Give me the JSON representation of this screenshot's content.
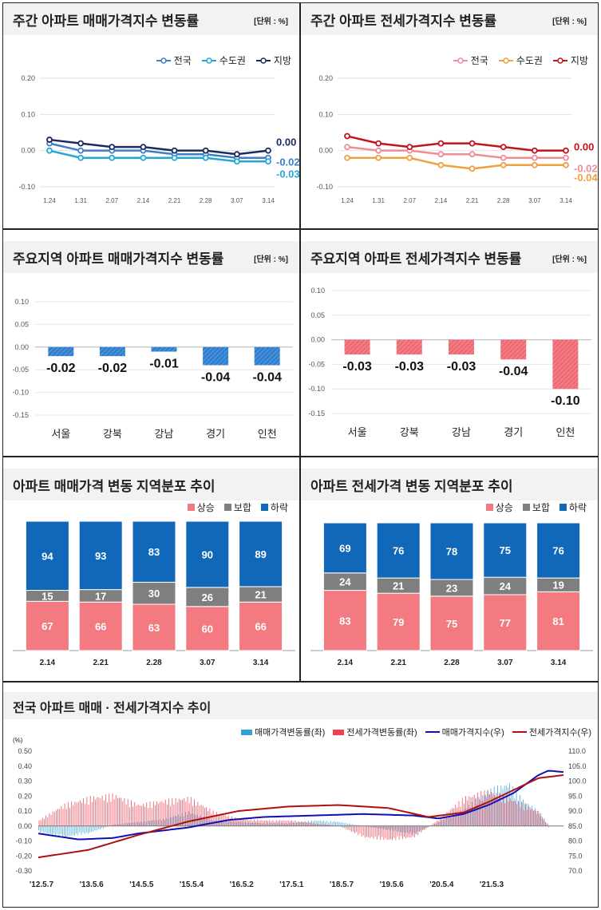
{
  "panel1": {
    "title": "주간 아파트 매매가격지수 변동률",
    "unit": "[단위 : %]",
    "chart_data": {
      "type": "line",
      "x": [
        "1.24",
        "1.31",
        "2.07",
        "2.14",
        "2.21",
        "2.28",
        "3.07",
        "3.14"
      ],
      "yticks": [
        "0.20",
        "0.10",
        "0.00",
        "-0.10"
      ],
      "ylim": [
        -0.1,
        0.2
      ],
      "series": [
        {
          "name": "전국",
          "color": "#3f7fc6",
          "values": [
            0.02,
            0.0,
            0.0,
            0.0,
            -0.01,
            -0.01,
            -0.02,
            -0.02
          ],
          "end_label": "-0.02"
        },
        {
          "name": "수도권",
          "color": "#22a8d8",
          "values": [
            0.0,
            -0.02,
            -0.02,
            -0.02,
            -0.02,
            -0.02,
            -0.03,
            -0.03
          ],
          "end_label": "-0.03"
        },
        {
          "name": "지방",
          "color": "#1c2b5e",
          "values": [
            0.03,
            0.02,
            0.01,
            0.01,
            0.0,
            0.0,
            -0.01,
            0.0
          ],
          "end_label": "0.00"
        }
      ]
    }
  },
  "panel2": {
    "title": "주간 아파트 전세가격지수 변동률",
    "unit": "[단위 : %]",
    "chart_data": {
      "type": "line",
      "x": [
        "1.24",
        "1.31",
        "2.07",
        "2.14",
        "2.21",
        "2.28",
        "3.07",
        "3.14"
      ],
      "yticks": [
        "0.20",
        "0.10",
        "0.00",
        "-0.10"
      ],
      "ylim": [
        -0.1,
        0.2
      ],
      "series": [
        {
          "name": "전국",
          "color": "#f08c98",
          "values": [
            0.01,
            0.0,
            0.0,
            -0.01,
            -0.01,
            -0.02,
            -0.02,
            -0.02
          ],
          "end_label": "-0.02"
        },
        {
          "name": "수도권",
          "color": "#f0a040",
          "values": [
            -0.02,
            -0.02,
            -0.02,
            -0.04,
            -0.05,
            -0.04,
            -0.04,
            -0.04
          ],
          "end_label": "-0.04"
        },
        {
          "name": "지방",
          "color": "#c0141c",
          "values": [
            0.04,
            0.02,
            0.01,
            0.02,
            0.02,
            0.01,
            0.0,
            0.0
          ],
          "end_label": "0.00"
        }
      ]
    }
  },
  "panel3": {
    "title": "주요지역 아파트 매매가격지수 변동률",
    "unit": "[단위 : %]",
    "chart_data": {
      "type": "bar",
      "categories": [
        "서울",
        "강북",
        "강남",
        "경기",
        "인천"
      ],
      "values": [
        -0.02,
        -0.02,
        -0.01,
        -0.04,
        -0.04
      ],
      "labels": [
        "-0.02",
        "-0.02",
        "-0.01",
        "-0.04",
        "-0.04"
      ],
      "yticks": [
        "0.10",
        "0.05",
        "0.00",
        "-0.05",
        "-0.10",
        "-0.15"
      ],
      "ylim": [
        -0.15,
        0.1
      ],
      "color": "#2f7fd0"
    }
  },
  "panel4": {
    "title": "주요지역 아파트 전세가격지수 변동률",
    "unit": "[단위 : %]",
    "chart_data": {
      "type": "bar",
      "categories": [
        "서울",
        "강북",
        "강남",
        "경기",
        "인천"
      ],
      "values": [
        -0.03,
        -0.03,
        -0.03,
        -0.04,
        -0.1
      ],
      "labels": [
        "-0.03",
        "-0.03",
        "-0.03",
        "-0.04",
        "-0.10"
      ],
      "yticks": [
        "0.10",
        "0.05",
        "0.00",
        "-0.05",
        "-0.10",
        "-0.15"
      ],
      "ylim": [
        -0.15,
        0.1
      ],
      "color": "#f06a74"
    }
  },
  "panel5": {
    "title": "아파트 매매가격 변동 지역분포 추이",
    "chart_data": {
      "type": "bar",
      "stacked": true,
      "categories": [
        "2.14",
        "2.21",
        "2.28",
        "3.07",
        "3.14"
      ],
      "series": [
        {
          "name": "상승",
          "color": "#f27a80",
          "values": [
            67,
            66,
            63,
            60,
            66
          ]
        },
        {
          "name": "보합",
          "color": "#7f7f7f",
          "values": [
            15,
            17,
            30,
            26,
            21
          ]
        },
        {
          "name": "하락",
          "color": "#1268b8",
          "values": [
            94,
            93,
            83,
            90,
            89
          ]
        }
      ]
    }
  },
  "panel6": {
    "title": "아파트 전세가격 변동 지역분포 추이",
    "chart_data": {
      "type": "bar",
      "stacked": true,
      "categories": [
        "2.14",
        "2.21",
        "2.28",
        "3.07",
        "3.14"
      ],
      "series": [
        {
          "name": "상승",
          "color": "#f27a80",
          "values": [
            83,
            79,
            75,
            77,
            81
          ]
        },
        {
          "name": "보합",
          "color": "#7f7f7f",
          "values": [
            24,
            21,
            23,
            24,
            19
          ]
        },
        {
          "name": "하락",
          "color": "#1268b8",
          "values": [
            69,
            76,
            78,
            75,
            76
          ]
        }
      ]
    }
  },
  "panel7": {
    "title": "전국 아파트 매매 · 전세가격지수 추이",
    "unit_left": "(%)",
    "chart_data": {
      "type": "bar+line",
      "x_ticks": [
        "'12.5.7",
        "'13.5.6",
        "'14.5.5",
        "'15.5.4",
        "'16.5.2",
        "'17.5.1",
        "'18.5.7",
        "'19.5.6",
        "'20.5.4",
        "'21.5.3"
      ],
      "y_left_ticks": [
        "0.50",
        "0.40",
        "0.30",
        "0.20",
        "0.10",
        "0.00",
        "-0.10",
        "-0.20",
        "-0.30"
      ],
      "y_left_lim": [
        -0.3,
        0.5
      ],
      "y_right_ticks": [
        "110.0",
        "105.0",
        "100.0",
        "95.0",
        "90.0",
        "85.0",
        "80.0",
        "75.0",
        "70.0"
      ],
      "y_right_lim": [
        70,
        110
      ],
      "series": [
        {
          "name": "매매가격변동률(좌)",
          "kind": "bar",
          "color": "#33a0d8",
          "keypoints": [
            [
              0,
              -0.04
            ],
            [
              0.5,
              -0.08
            ],
            [
              1,
              -0.05
            ],
            [
              1.5,
              0.01
            ],
            [
              2,
              0.03
            ],
            [
              2.5,
              0.05
            ],
            [
              3,
              0.1
            ],
            [
              3.5,
              0.04
            ],
            [
              4,
              0.03
            ],
            [
              4.5,
              0.02
            ],
            [
              5,
              0.02
            ],
            [
              5.5,
              0.04
            ],
            [
              6,
              0.03
            ],
            [
              6.5,
              0.0
            ],
            [
              7,
              -0.03
            ],
            [
              7.5,
              -0.06
            ],
            [
              8,
              0.03
            ],
            [
              8.5,
              0.12
            ],
            [
              9,
              0.25
            ],
            [
              9.4,
              0.3
            ],
            [
              9.7,
              0.18
            ],
            [
              10,
              0.1
            ],
            [
              10.2,
              -0.01
            ]
          ]
        },
        {
          "name": "전세가격변동률(좌)",
          "kind": "bar",
          "color": "#f04050",
          "keypoints": [
            [
              0,
              0.04
            ],
            [
              0.5,
              0.15
            ],
            [
              1,
              0.2
            ],
            [
              1.5,
              0.22
            ],
            [
              2,
              0.15
            ],
            [
              2.5,
              0.18
            ],
            [
              3,
              0.2
            ],
            [
              3.5,
              0.1
            ],
            [
              4,
              0.05
            ],
            [
              4.5,
              0.04
            ],
            [
              5,
              0.04
            ],
            [
              5.5,
              0.02
            ],
            [
              6,
              0.0
            ],
            [
              6.5,
              -0.08
            ],
            [
              7,
              -0.1
            ],
            [
              7.5,
              -0.08
            ],
            [
              8,
              0.05
            ],
            [
              8.5,
              0.2
            ],
            [
              9,
              0.25
            ],
            [
              9.5,
              0.18
            ],
            [
              10,
              0.1
            ],
            [
              10.2,
              0.0
            ]
          ]
        },
        {
          "name": "매매가격지수(우)",
          "kind": "line",
          "color": "#1010b0",
          "keypoints": [
            [
              0,
              82.5
            ],
            [
              0.8,
              80.5
            ],
            [
              1.5,
              81.0
            ],
            [
              2,
              82.5
            ],
            [
              3,
              84.5
            ],
            [
              3.8,
              87.0
            ],
            [
              4.5,
              88.0
            ],
            [
              5.5,
              88.5
            ],
            [
              6.5,
              89.0
            ],
            [
              7.5,
              88.5
            ],
            [
              8,
              87.5
            ],
            [
              8.5,
              89.0
            ],
            [
              9,
              92.0
            ],
            [
              9.5,
              96.0
            ],
            [
              10,
              102.0
            ],
            [
              10.2,
              103.5
            ],
            [
              10.5,
              103.0
            ]
          ]
        },
        {
          "name": "전세가격지수(우)",
          "kind": "line",
          "color": "#b01010",
          "keypoints": [
            [
              0,
              74.5
            ],
            [
              1,
              77.0
            ],
            [
              2,
              82.0
            ],
            [
              3,
              86.5
            ],
            [
              4,
              90.0
            ],
            [
              5,
              91.5
            ],
            [
              6,
              92.0
            ],
            [
              7,
              91.0
            ],
            [
              7.8,
              88.0
            ],
            [
              8.5,
              89.5
            ],
            [
              9,
              93.0
            ],
            [
              9.5,
              97.0
            ],
            [
              10,
              101.0
            ],
            [
              10.5,
              102.0
            ]
          ]
        }
      ]
    }
  }
}
